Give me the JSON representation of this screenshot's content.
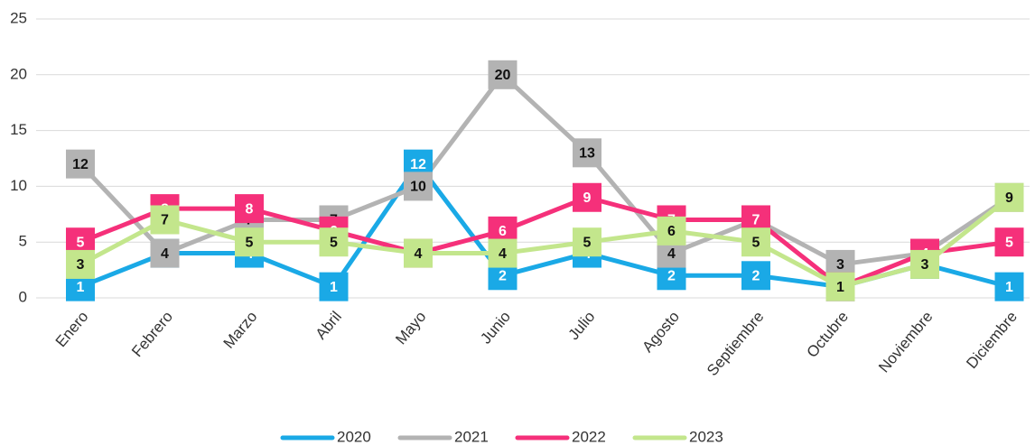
{
  "chart_data": {
    "type": "line",
    "categories": [
      "Enero",
      "Febrero",
      "Marzo",
      "Abril",
      "Mayo",
      "Junio",
      "Julio",
      "Agosto",
      "Septiembre",
      "Octubre",
      "Noviembre",
      "Diciembre"
    ],
    "series": [
      {
        "name": "2020",
        "color": "#1aa9e6",
        "values": [
          1,
          4,
          4,
          1,
          12,
          2,
          4,
          2,
          2,
          1,
          3,
          1
        ]
      },
      {
        "name": "2021",
        "color": "#b3b3b3",
        "values": [
          12,
          4,
          7,
          7,
          10,
          20,
          13,
          4,
          7,
          3,
          4,
          9
        ]
      },
      {
        "name": "2022",
        "color": "#f5307a",
        "values": [
          5,
          8,
          8,
          6,
          4,
          6,
          9,
          7,
          7,
          1,
          4,
          5
        ]
      },
      {
        "name": "2023",
        "color": "#c3e68c",
        "values": [
          3,
          7,
          5,
          5,
          4,
          4,
          5,
          6,
          5,
          1,
          3,
          9
        ]
      }
    ],
    "ylim": [
      0,
      25
    ],
    "yticks": [
      0,
      5,
      10,
      15,
      20,
      25
    ],
    "grid": true,
    "legend": "bottom"
  }
}
